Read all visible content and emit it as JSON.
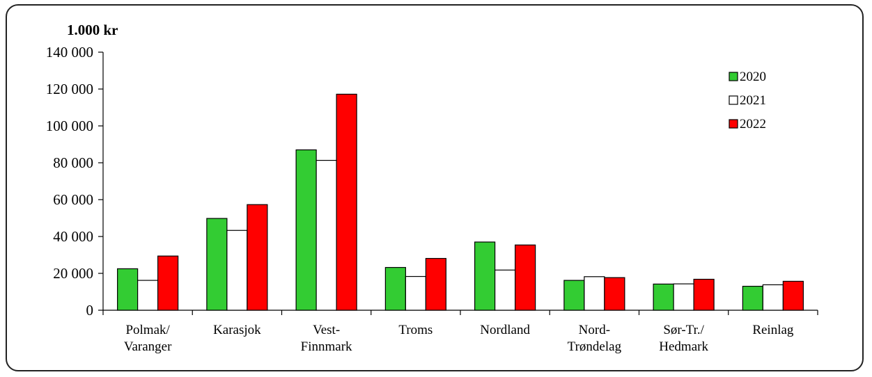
{
  "chart_data": {
    "type": "bar",
    "unit_label": "1.000 kr",
    "categories": [
      [
        "Polmak/",
        "Varanger"
      ],
      [
        "Karasjok"
      ],
      [
        "Vest-",
        "Finnmark"
      ],
      [
        "Troms"
      ],
      [
        "Nordland"
      ],
      [
        "Nord-",
        "Trøndelag"
      ],
      [
        "Sør-Tr./",
        "Hedmark"
      ],
      [
        "Reinlag"
      ]
    ],
    "series": [
      {
        "name": "2020",
        "color": "#33cc33",
        "values": [
          22500,
          49800,
          87000,
          23200,
          37000,
          16200,
          14200,
          13000
        ]
      },
      {
        "name": "2021",
        "color": "#ffffff",
        "values": [
          16200,
          43300,
          81300,
          18300,
          21800,
          18200,
          14300,
          13800
        ]
      },
      {
        "name": "2022",
        "color": "#ff0000",
        "values": [
          29400,
          57300,
          117200,
          28100,
          35400,
          17700,
          16800,
          15700
        ]
      }
    ],
    "ylim": [
      0,
      140000
    ],
    "yticks": [
      0,
      20000,
      40000,
      60000,
      80000,
      100000,
      120000,
      140000
    ],
    "ytick_labels": [
      "0",
      "20 000",
      "40 000",
      "60 000",
      "80 000",
      "100 000",
      "120 000",
      "140 000"
    ],
    "legend": "top-right",
    "grid": false
  }
}
